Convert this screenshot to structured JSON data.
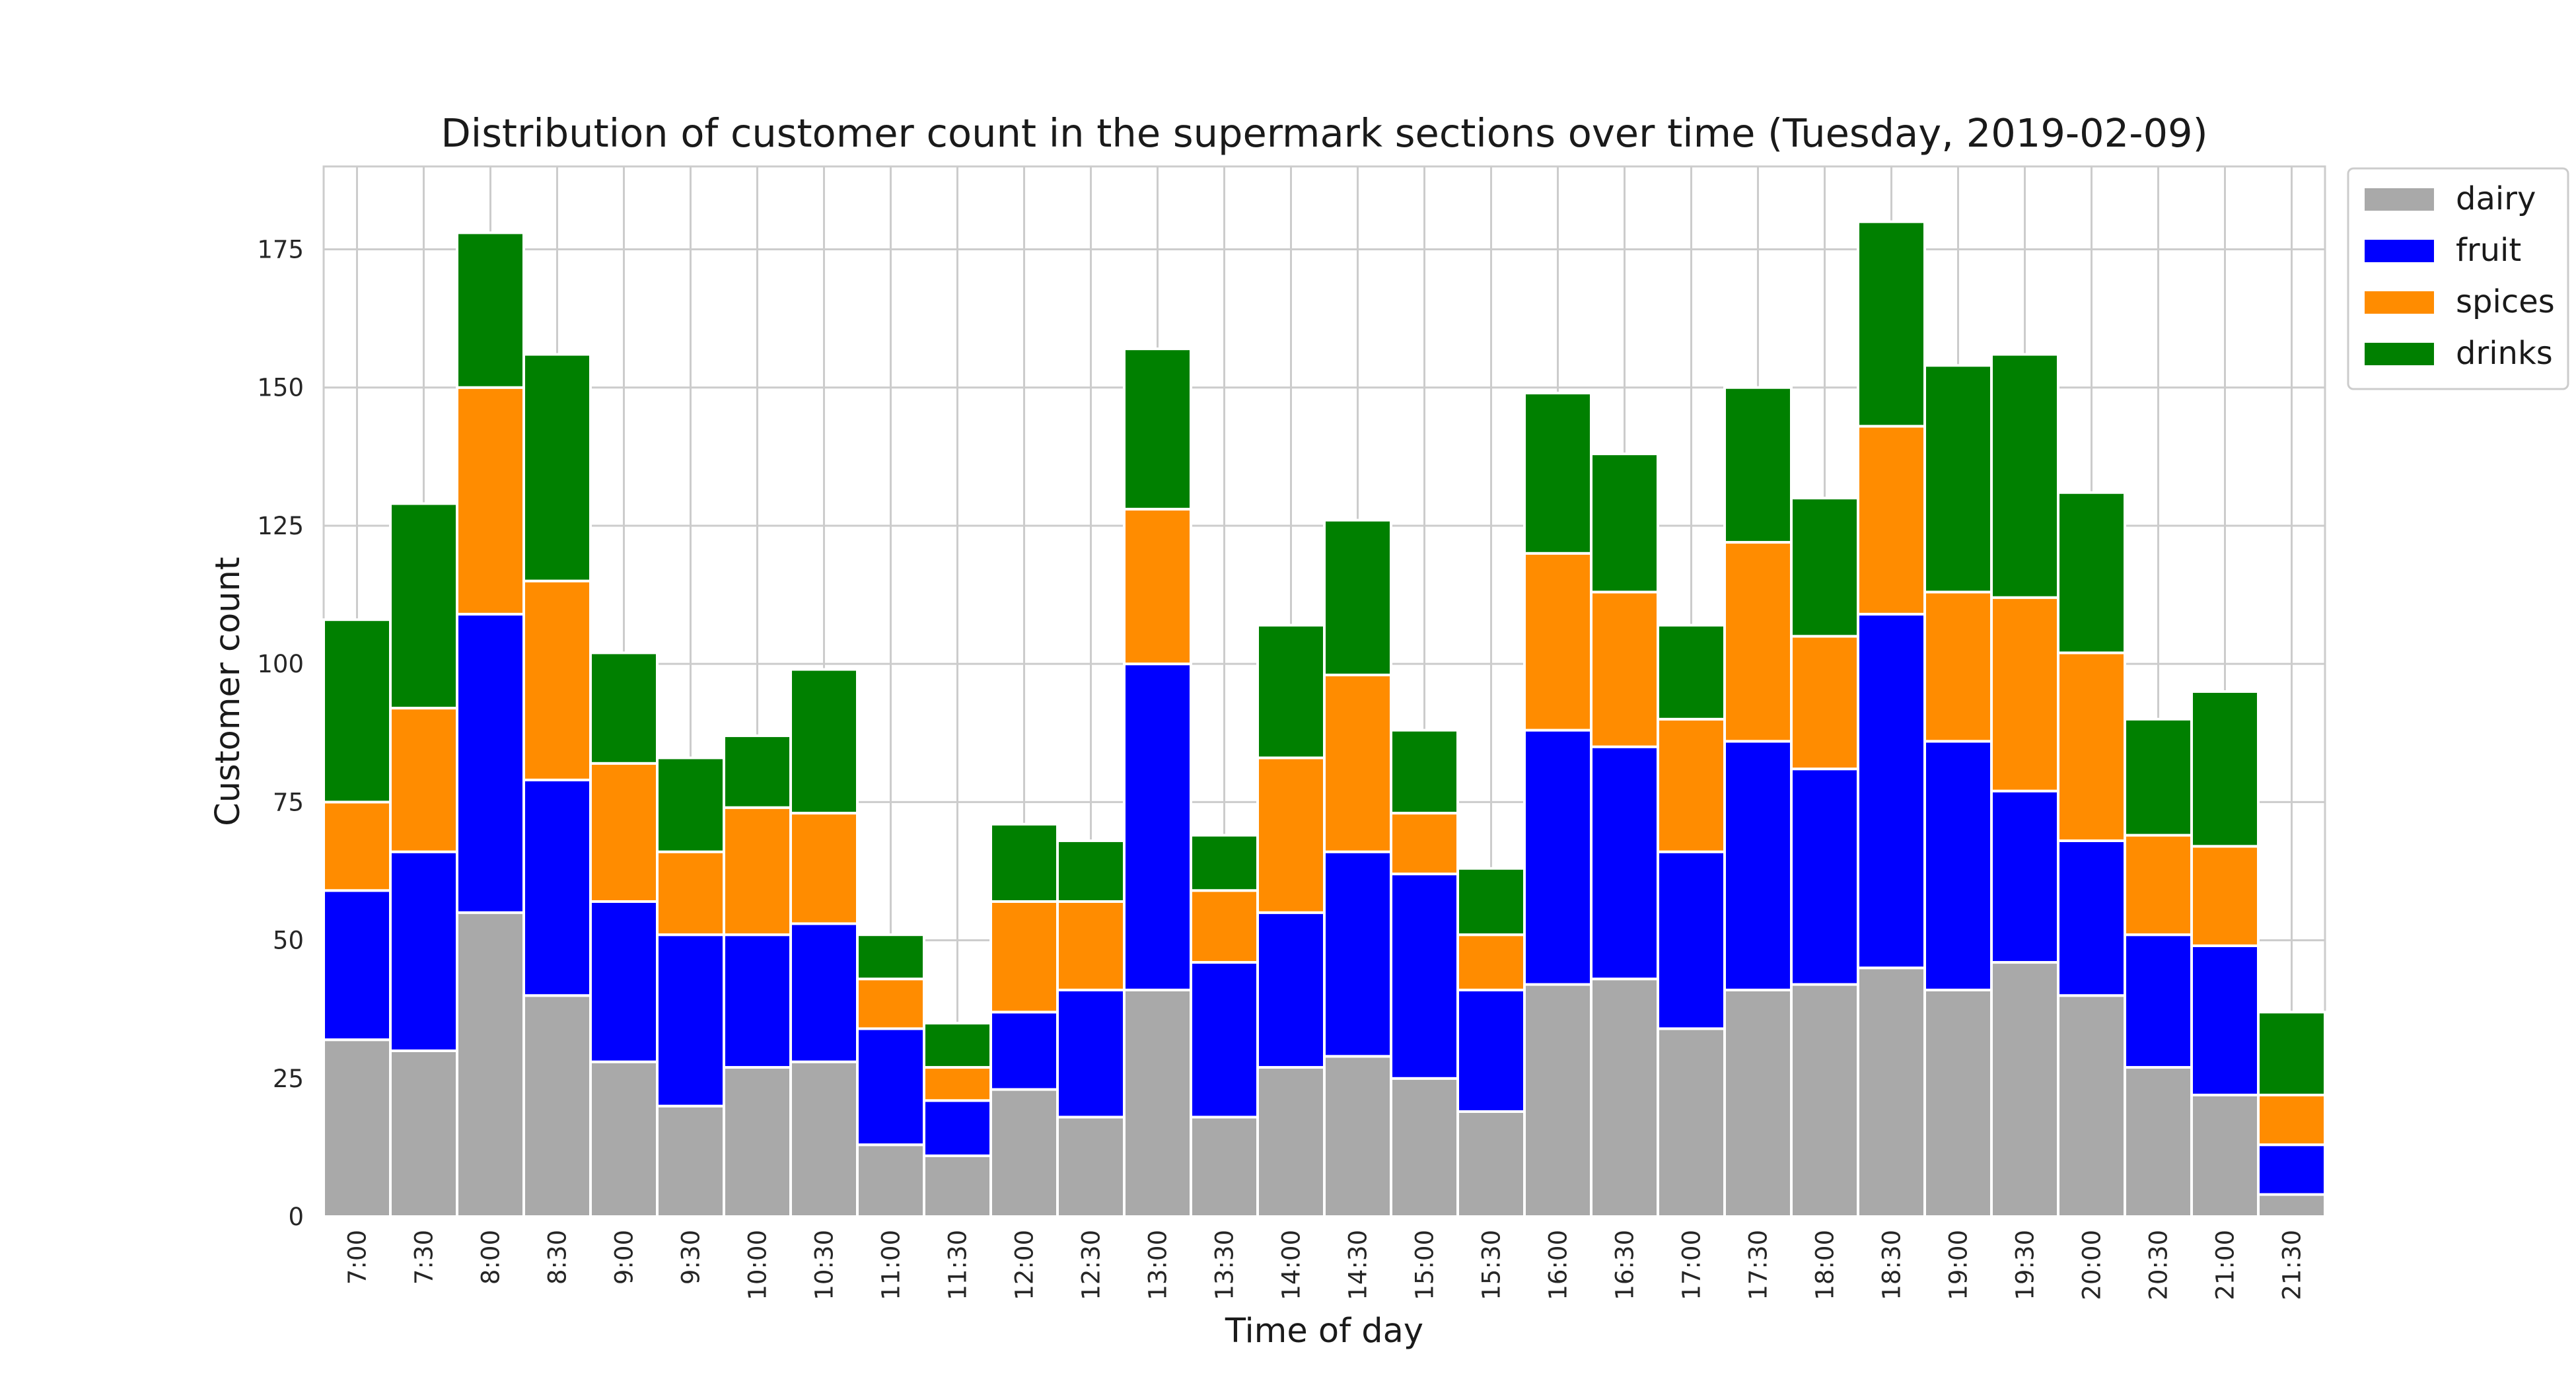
{
  "chart_data": {
    "type": "bar",
    "stacked": true,
    "title": "Distribution of customer count in the supermark sections over time (Tuesday, 2019-02-09)",
    "xlabel": "Time of day",
    "ylabel": "Customer count",
    "ylim": [
      0,
      190
    ],
    "yticks": [
      0,
      25,
      50,
      75,
      100,
      125,
      150,
      175
    ],
    "grid": true,
    "legend_position": "outside top-right",
    "categories": [
      "7:00",
      "7:30",
      "8:00",
      "8:30",
      "9:00",
      "9:30",
      "10:00",
      "10:30",
      "11:00",
      "11:30",
      "12:00",
      "12:30",
      "13:00",
      "13:30",
      "14:00",
      "14:30",
      "15:00",
      "15:30",
      "16:00",
      "16:30",
      "17:00",
      "17:30",
      "18:00",
      "18:30",
      "19:00",
      "19:30",
      "20:00",
      "20:30",
      "21:00",
      "21:30"
    ],
    "series": [
      {
        "name": "dairy",
        "color": "#a9a9a9",
        "values": [
          32,
          30,
          55,
          40,
          28,
          20,
          27,
          28,
          13,
          11,
          23,
          18,
          41,
          18,
          27,
          29,
          25,
          19,
          42,
          43,
          34,
          41,
          42,
          45,
          41,
          46,
          40,
          27,
          22,
          4
        ]
      },
      {
        "name": "fruit",
        "color": "#0000ff",
        "values": [
          27,
          36,
          54,
          39,
          29,
          31,
          24,
          25,
          21,
          10,
          14,
          23,
          59,
          28,
          28,
          37,
          37,
          22,
          46,
          42,
          32,
          45,
          39,
          64,
          45,
          31,
          28,
          24,
          27,
          9
        ]
      },
      {
        "name": "spices",
        "color": "#ff8c00",
        "values": [
          16,
          26,
          41,
          36,
          25,
          15,
          23,
          20,
          9,
          6,
          20,
          16,
          28,
          13,
          28,
          32,
          11,
          10,
          32,
          28,
          24,
          36,
          24,
          34,
          27,
          35,
          34,
          18,
          18,
          9
        ]
      },
      {
        "name": "drinks",
        "color": "#008000",
        "values": [
          33,
          37,
          28,
          41,
          20,
          17,
          13,
          26,
          8,
          8,
          14,
          11,
          29,
          10,
          24,
          28,
          15,
          12,
          29,
          25,
          17,
          28,
          25,
          37,
          41,
          44,
          29,
          21,
          28,
          15
        ]
      }
    ]
  }
}
